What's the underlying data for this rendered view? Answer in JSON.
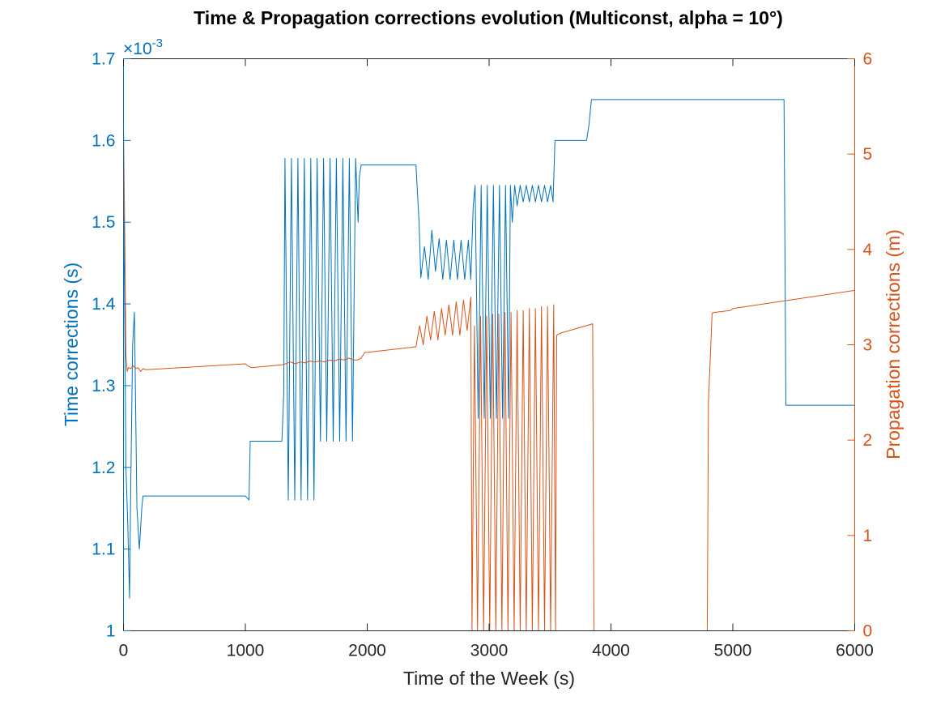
{
  "chart_data": {
    "type": "line",
    "title": "Time & Propagation corrections evolution (Multiconst, alpha = 10°)",
    "xlabel": "Time of the Week (s)",
    "xlim": [
      0,
      6000
    ],
    "xticks": [
      0,
      1000,
      2000,
      3000,
      4000,
      5000,
      6000
    ],
    "xtick_labels": [
      "0",
      "1000",
      "2000",
      "3000",
      "4000",
      "5000",
      "6000"
    ],
    "left_axis": {
      "label": "Time corrections (s)",
      "exponent_label": "×10",
      "exponent_power": "-3",
      "ylim": [
        1.0,
        1.7
      ],
      "ticks": [
        1.0,
        1.1,
        1.2,
        1.3,
        1.4,
        1.5,
        1.6,
        1.7
      ],
      "tick_labels": [
        "1",
        "1.1",
        "1.2",
        "1.3",
        "1.4",
        "1.5",
        "1.6",
        "1.7"
      ],
      "color": "#0072BD"
    },
    "right_axis": {
      "label": "Propagation corrections (m)",
      "ylim": [
        0,
        6
      ],
      "ticks": [
        0,
        1,
        2,
        3,
        4,
        5,
        6
      ],
      "tick_labels": [
        "0",
        "1",
        "2",
        "3",
        "4",
        "5",
        "6"
      ],
      "color": "#D95319"
    },
    "grid": false,
    "series": [
      {
        "axis": "left",
        "color": "#0072BD",
        "x": [
          0,
          10,
          20,
          35,
          50,
          60,
          75,
          90,
          110,
          130,
          150,
          160,
          1000,
          1030,
          1040,
          1300,
          1315,
          1325,
          1352,
          1378,
          1405,
          1431,
          1457,
          1484,
          1510,
          1537,
          1563,
          1589,
          1616,
          1642,
          1668,
          1695,
          1721,
          1747,
          1774,
          1800,
          1826,
          1853,
          1879,
          1905,
          1925,
          1935,
          1950,
          1970,
          2000,
          2400,
          2425,
          2440,
          2470,
          2500,
          2530,
          2560,
          2590,
          2620,
          2650,
          2680,
          2710,
          2740,
          2770,
          2800,
          2830,
          2850,
          2870,
          2885,
          2910,
          2935,
          2960,
          2985,
          3010,
          3035,
          3060,
          3085,
          3110,
          3135,
          3160,
          3175,
          3190,
          3210,
          3230,
          3255,
          3280,
          3305,
          3330,
          3355,
          3380,
          3405,
          3430,
          3455,
          3480,
          3505,
          3525,
          3540,
          3555,
          3800,
          3820,
          3840,
          5400,
          5420,
          5435,
          6000
        ],
        "y": [
          1.55,
          1.39,
          1.2,
          1.13,
          1.04,
          1.18,
          1.35,
          1.39,
          1.15,
          1.1,
          1.15,
          1.165,
          1.165,
          1.16,
          1.232,
          1.232,
          1.29,
          1.578,
          1.16,
          1.578,
          1.16,
          1.578,
          1.16,
          1.578,
          1.16,
          1.578,
          1.16,
          1.578,
          1.232,
          1.578,
          1.232,
          1.578,
          1.232,
          1.578,
          1.232,
          1.578,
          1.232,
          1.578,
          1.232,
          1.578,
          1.5,
          1.555,
          1.57,
          1.57,
          1.57,
          1.57,
          1.5,
          1.432,
          1.47,
          1.43,
          1.49,
          1.44,
          1.48,
          1.43,
          1.478,
          1.43,
          1.478,
          1.43,
          1.478,
          1.43,
          1.478,
          1.43,
          1.52,
          1.545,
          1.26,
          1.545,
          1.26,
          1.545,
          1.26,
          1.545,
          1.26,
          1.545,
          1.26,
          1.545,
          1.26,
          1.545,
          1.5,
          1.545,
          1.52,
          1.545,
          1.525,
          1.545,
          1.525,
          1.545,
          1.525,
          1.545,
          1.525,
          1.545,
          1.525,
          1.545,
          1.525,
          1.6,
          1.6,
          1.6,
          1.62,
          1.65,
          1.65,
          1.65,
          1.276,
          1.276
        ]
      },
      {
        "axis": "right",
        "color": "#D95319",
        "x": [
          0,
          10,
          20,
          30,
          40,
          60,
          80,
          100,
          120,
          140,
          160,
          180,
          200,
          1000,
          1020,
          1050,
          1300,
          1330,
          1370,
          1410,
          1450,
          1490,
          1530,
          1570,
          1610,
          1650,
          1690,
          1730,
          1770,
          1810,
          1850,
          1890,
          1920,
          1950,
          1980,
          2000,
          2400,
          2430,
          2460,
          2490,
          2520,
          2550,
          2580,
          2610,
          2640,
          2670,
          2700,
          2730,
          2760,
          2790,
          2820,
          2850,
          2860,
          2880,
          2905,
          2930,
          2955,
          2980,
          3005,
          3030,
          3055,
          3080,
          3105,
          3130,
          3155,
          3180,
          3205,
          3230,
          3255,
          3280,
          3305,
          3330,
          3355,
          3380,
          3405,
          3430,
          3455,
          3480,
          3505,
          3530,
          3545,
          3555,
          3580,
          3850,
          3860,
          3890,
          4780,
          4790,
          4800,
          4830,
          4850,
          4980,
          5000,
          6000
        ],
        "y": [
          5.3,
          4.2,
          2.9,
          2.72,
          2.76,
          2.75,
          2.78,
          2.75,
          2.76,
          2.72,
          2.75,
          2.74,
          2.74,
          2.8,
          2.78,
          2.76,
          2.79,
          2.8,
          2.82,
          2.8,
          2.82,
          2.81,
          2.83,
          2.82,
          2.83,
          2.82,
          2.84,
          2.83,
          2.85,
          2.84,
          2.86,
          2.84,
          2.84,
          2.86,
          2.92,
          2.92,
          2.98,
          3.2,
          3.0,
          3.3,
          3.05,
          3.35,
          3.05,
          3.38,
          3.1,
          3.42,
          3.1,
          3.45,
          3.1,
          3.47,
          3.15,
          3.5,
          0,
          3.2,
          0,
          3.3,
          0,
          3.3,
          0,
          3.32,
          0,
          3.32,
          0,
          3.34,
          0,
          3.34,
          0,
          3.36,
          0,
          3.36,
          0,
          3.38,
          0,
          3.38,
          0,
          3.4,
          0,
          3.4,
          0,
          3.42,
          0,
          3.1,
          3.12,
          3.22,
          0,
          0,
          0,
          0,
          2.4,
          3.33,
          3.34,
          3.36,
          3.38,
          3.57
        ]
      }
    ]
  }
}
